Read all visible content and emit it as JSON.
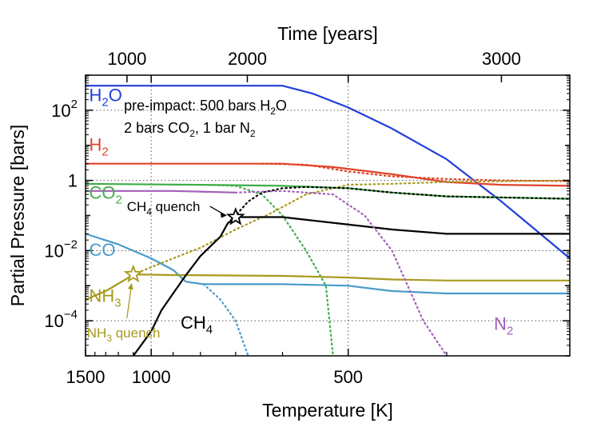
{
  "chart_data": {
    "type": "line",
    "xlabel": "Temperature [K]",
    "ylabel": "Partial Pressure [bars]",
    "top_xlabel": "Time [years]",
    "x_scale": "reciprocal temperature (1/T), hotter on the left",
    "y_scale": "log",
    "xlim": [
      1500,
      320
    ],
    "ylim": [
      1e-05,
      1000
    ],
    "grid": "dotted at 1000 K, 500 K and 10^-4, 10^-2, 1, 10^2 bars",
    "x_ticks": [
      {
        "T": 1500,
        "label": "1500"
      },
      {
        "T": 1000,
        "label": "1000"
      },
      {
        "T": 500,
        "label": "500"
      }
    ],
    "x_minor_ticks": [
      1400,
      1300,
      1200,
      1100,
      900,
      800,
      700,
      600,
      400
    ],
    "top_ticks": [
      {
        "T": 1140,
        "label": "1000"
      },
      {
        "T": 672,
        "label": "2000"
      },
      {
        "T": 360,
        "label": "3000"
      }
    ],
    "y_ticks": [
      {
        "value": 100,
        "base": "10",
        "exp": "2"
      },
      {
        "value": 1,
        "base": "1",
        "exp": ""
      },
      {
        "value": 0.01,
        "base": "10",
        "exp": "−2"
      },
      {
        "value": 0.0001,
        "base": "10",
        "exp": "−4"
      }
    ],
    "annotation": {
      "line1_a": "pre-impact: 500 bars H",
      "line1_sub": "2",
      "line1_b": "O",
      "line2_a": "2 bars CO",
      "line2_sub": "2",
      "line2_b": ", 1 bar N",
      "line2_sub2": "2"
    },
    "quench_labels": {
      "ch4": {
        "text": "CH",
        "sub": "4",
        "after": " quench"
      },
      "nh3": {
        "text": "NH",
        "sub": "3",
        "after": " quench"
      }
    },
    "series": [
      {
        "name": "H",
        "sub": "2",
        "after": "O",
        "color": "#1f3fdc",
        "solid": [
          [
            1500,
            500
          ],
          [
            600,
            500
          ],
          [
            550,
            300
          ],
          [
            500,
            120
          ],
          [
            450,
            30
          ],
          [
            400,
            4
          ],
          [
            360,
            0.25
          ],
          [
            320,
            0.006
          ]
        ],
        "dotted": []
      },
      {
        "name": "H",
        "sub": "2",
        "after": "",
        "color": "#e0442a",
        "solid": [
          [
            1500,
            3
          ],
          [
            600,
            3
          ],
          [
            520,
            2.4
          ],
          [
            450,
            1.5
          ],
          [
            400,
            0.9
          ],
          [
            360,
            0.75
          ],
          [
            320,
            0.7
          ]
        ],
        "dotted": [
          [
            640,
            3
          ],
          [
            560,
            2.8
          ],
          [
            500,
            1.8
          ],
          [
            450,
            1.3
          ],
          [
            400,
            1.1
          ],
          [
            360,
            1.0
          ],
          [
            320,
            0.95
          ]
        ]
      },
      {
        "name": "CO",
        "sub": "2",
        "after": "",
        "color": "#3fae49",
        "solid": [
          [
            1500,
            0.8
          ],
          [
            800,
            0.75
          ],
          [
            600,
            0.7
          ],
          [
            500,
            0.6
          ],
          [
            450,
            0.45
          ],
          [
            400,
            0.35
          ],
          [
            320,
            0.3
          ]
        ],
        "dotted": [
          [
            800,
            0.75
          ],
          [
            700,
            0.7
          ],
          [
            640,
            0.4
          ],
          [
            600,
            0.1
          ],
          [
            560,
            0.01
          ],
          [
            530,
            0.001
          ],
          [
            520,
            1e-05
          ]
        ]
      },
      {
        "name": "CO",
        "sub": "",
        "after": "",
        "color": "#4a9bcb",
        "solid": [
          [
            1500,
            0.03
          ],
          [
            1200,
            0.015
          ],
          [
            1000,
            0.006
          ],
          [
            900,
            0.0028
          ],
          [
            850,
            0.0013
          ],
          [
            790,
            0.0011
          ],
          [
            600,
            0.0011
          ],
          [
            500,
            0.001
          ],
          [
            450,
            0.0007
          ],
          [
            400,
            0.0006
          ],
          [
            320,
            0.0006
          ]
        ],
        "dotted": [
          [
            790,
            0.0011
          ],
          [
            740,
            0.0004
          ],
          [
            700,
            0.0001
          ],
          [
            670,
            1e-05
          ]
        ]
      },
      {
        "name": "NH",
        "sub": "3",
        "after": "",
        "color": "#a89a1e",
        "solid": [
          [
            1500,
            0.0004
          ],
          [
            1300,
            0.0007
          ],
          [
            1150,
            0.0015
          ],
          [
            1100,
            0.0021
          ],
          [
            900,
            0.002
          ],
          [
            600,
            0.0019
          ],
          [
            500,
            0.0017
          ],
          [
            450,
            0.0015
          ],
          [
            400,
            0.0014
          ],
          [
            320,
            0.0014
          ]
        ],
        "dotted": [
          [
            1100,
            0.0021
          ],
          [
            900,
            0.006
          ],
          [
            800,
            0.012
          ],
          [
            700,
            0.04
          ],
          [
            620,
            0.12
          ],
          [
            560,
            0.4
          ],
          [
            500,
            0.75
          ],
          [
            450,
            0.8
          ],
          [
            400,
            0.9
          ],
          [
            320,
            1.0
          ]
        ]
      },
      {
        "name": "CH",
        "sub": "4",
        "after": "",
        "color": "#000000",
        "solid": [
          [
            1100,
            1e-05
          ],
          [
            1000,
            5e-05
          ],
          [
            950,
            0.0002
          ],
          [
            900,
            0.0006
          ],
          [
            850,
            0.002
          ],
          [
            800,
            0.007
          ],
          [
            740,
            0.025
          ],
          [
            720,
            0.06
          ],
          [
            700,
            0.09
          ],
          [
            600,
            0.09
          ],
          [
            450,
            0.04
          ],
          [
            400,
            0.03
          ],
          [
            320,
            0.03
          ]
        ],
        "dotted": [
          [
            720,
            0.06
          ],
          [
            700,
            0.1
          ],
          [
            670,
            0.25
          ],
          [
            640,
            0.45
          ],
          [
            600,
            0.6
          ],
          [
            560,
            0.65
          ],
          [
            500,
            0.6
          ],
          [
            450,
            0.45
          ],
          [
            400,
            0.35
          ],
          [
            320,
            0.3
          ]
        ]
      },
      {
        "name": "N",
        "sub": "2",
        "after": "",
        "color": "#a35fb8",
        "solid": [
          [
            1500,
            0.5
          ],
          [
            900,
            0.5
          ],
          [
            700,
            0.45
          ]
        ],
        "dotted": [
          [
            700,
            0.45
          ],
          [
            600,
            0.5
          ],
          [
            520,
            0.4
          ],
          [
            480,
            0.1
          ],
          [
            450,
            0.01
          ],
          [
            420,
            0.0001
          ],
          [
            400,
            1e-05
          ]
        ]
      }
    ],
    "series_labels": [
      {
        "series": 0,
        "T": 1460,
        "y": 180
      },
      {
        "series": 1,
        "T": 1460,
        "y": 7
      },
      {
        "series": 2,
        "T": 1460,
        "y": 0.3
      },
      {
        "series": 3,
        "T": 1460,
        "y": 0.007
      },
      {
        "series": 4,
        "T": 1460,
        "y": 0.00035
      },
      {
        "series": 5,
        "T": 870,
        "y": 6e-05
      },
      {
        "series": 6,
        "T": 365,
        "y": 5.5e-05
      }
    ],
    "quench_points": [
      {
        "series": 5,
        "T": 700,
        "y": 0.09,
        "label_T": 790,
        "label_y": 0.12
      },
      {
        "series": 4,
        "T": 1100,
        "y": 0.0021,
        "label_T": 1100,
        "label_y": 0.00018
      }
    ]
  }
}
